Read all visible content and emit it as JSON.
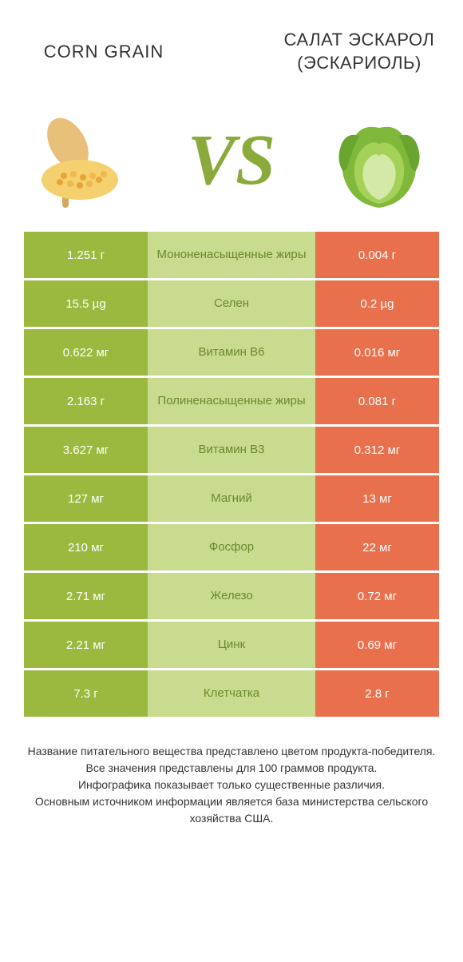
{
  "header": {
    "left_title": "CORN GRAIN",
    "right_title": "САЛАТ ЭСКАРОЛ (ЭСКАРИОЛЬ)",
    "vs": "VS"
  },
  "colors": {
    "left_bg": "#9ab93e",
    "right_bg": "#e9704d",
    "mid_bg_winner_left": "#c8db8f",
    "mid_text_winner_left": "#6a8a2a",
    "mid_bg_winner_right": "#f5b8a8",
    "mid_text_winner_right": "#c24e2e",
    "vs_color": "#8aaa3b"
  },
  "rows": [
    {
      "left": "1.251 г",
      "label": "Мононенасыщенные жиры",
      "right": "0.004 г",
      "winner": "left"
    },
    {
      "left": "15.5 µg",
      "label": "Селен",
      "right": "0.2 µg",
      "winner": "left"
    },
    {
      "left": "0.622 мг",
      "label": "Витамин B6",
      "right": "0.016 мг",
      "winner": "left"
    },
    {
      "left": "2.163 г",
      "label": "Полиненасыщенные жиры",
      "right": "0.081 г",
      "winner": "left"
    },
    {
      "left": "3.627 мг",
      "label": "Витамин B3",
      "right": "0.312 мг",
      "winner": "left"
    },
    {
      "left": "127 мг",
      "label": "Магний",
      "right": "13 мг",
      "winner": "left"
    },
    {
      "left": "210 мг",
      "label": "Фосфор",
      "right": "22 мг",
      "winner": "left"
    },
    {
      "left": "2.71 мг",
      "label": "Железо",
      "right": "0.72 мг",
      "winner": "left"
    },
    {
      "left": "2.21 мг",
      "label": "Цинк",
      "right": "0.69 мг",
      "winner": "left"
    },
    {
      "left": "7.3 г",
      "label": "Клетчатка",
      "right": "2.8 г",
      "winner": "left"
    }
  ],
  "footer": {
    "line1": "Название питательного вещества представлено цветом продукта-победителя.",
    "line2": "Все значения представлены для 100 граммов продукта.",
    "line3": "Инфографика показывает только существенные различия.",
    "line4": "Основным источником информации является база министерства сельского хозяйства США."
  }
}
